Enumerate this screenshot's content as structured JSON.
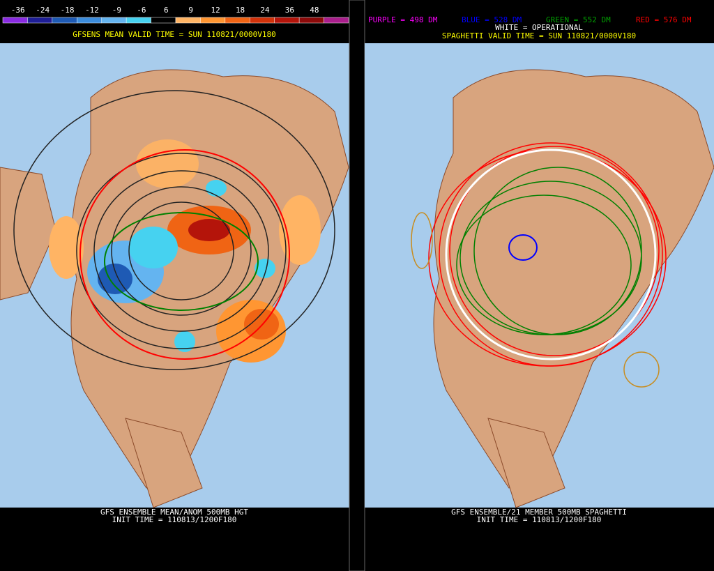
{
  "colorbar": {
    "labels": [
      "-36",
      "-24",
      "-18",
      "-12",
      "-9",
      "-6",
      "6",
      "9",
      "12",
      "18",
      "24",
      "36",
      "48"
    ],
    "colors": [
      "#8a2be2",
      "#1e1e96",
      "#1e5ab4",
      "#3c8cdc",
      "#64b4f0",
      "#46d2f0",
      "#000000",
      "#ffb464",
      "#ff9632",
      "#f06414",
      "#d2320a",
      "#b4140a",
      "#8c0a0a",
      "#aa1e8c"
    ]
  },
  "left": {
    "valid_time": "GFSENS MEAN VALID TIME = SUN 110821/0000V180",
    "footer": [
      "GFS ENSEMBLE MEAN/ANOM 500MB HGT",
      "INIT TIME = 110813/1200F180"
    ]
  },
  "right": {
    "legend": [
      {
        "text": "PURPLE = 498 DM",
        "color": "#ff00ff"
      },
      {
        "text": "BLUE = 528 DM",
        "color": "#0000ff"
      },
      {
        "text": "GREEN = 552 DM",
        "color": "#00a000"
      },
      {
        "text": "RED = 576 DM",
        "color": "#ff0000"
      }
    ],
    "operational": "WHITE = OPERATIONAL",
    "valid_time": "SPAGHETTI VALID TIME = SUN 110821/0000V180",
    "footer": [
      "GFS ENSEMBLE/21 MEMBER 500MB SPAGHETTI",
      "INIT TIME = 110813/1200F180"
    ]
  }
}
